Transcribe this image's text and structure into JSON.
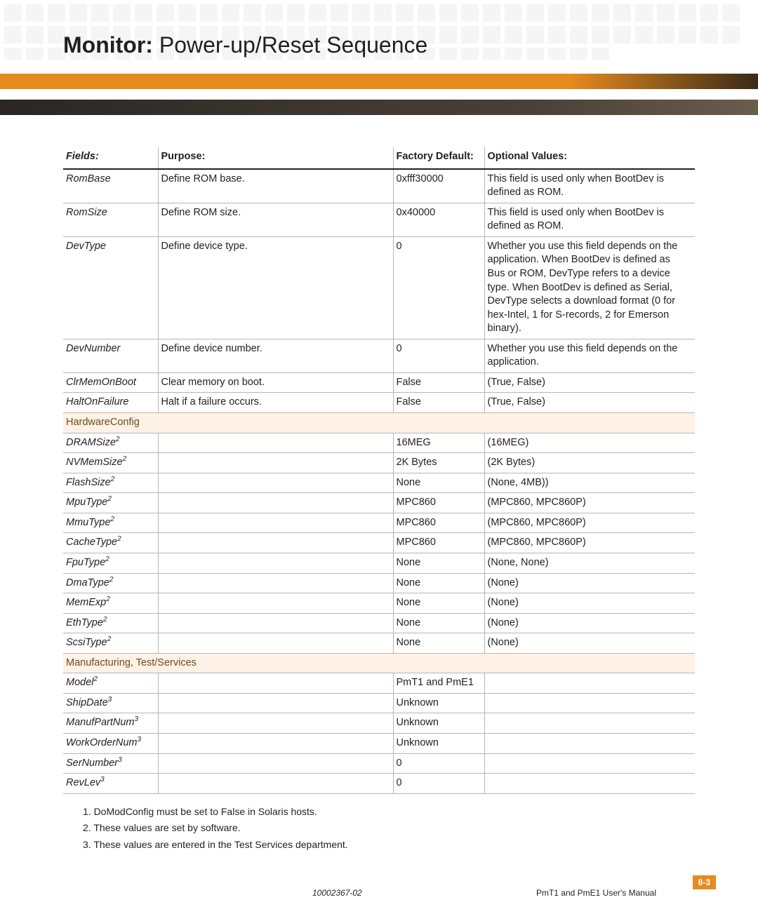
{
  "header": {
    "title_bold": "Monitor:",
    "title_rest": "  Power-up/Reset Sequence"
  },
  "colors": {
    "orange": "#e78b1f",
    "section_bg": "#fdf2e5",
    "text": "#231f20",
    "rule": "#b8b6b4"
  },
  "table": {
    "headers": {
      "fields": "Fields:",
      "purpose": "Purpose:",
      "default": "Factory Default:",
      "optional": "Optional Values:"
    },
    "rows": [
      {
        "type": "data",
        "field": "RomBase",
        "sup": "",
        "purpose": "Define ROM base.",
        "default": "0xfff30000",
        "optional": "This field is used only when BootDev is defined as ROM."
      },
      {
        "type": "data",
        "field": "RomSize",
        "sup": "",
        "purpose": "Define ROM size.",
        "default": "0x40000",
        "optional": "This field is used only when BootDev is defined as ROM."
      },
      {
        "type": "data",
        "field": "DevType",
        "sup": "",
        "purpose": "Define device type.",
        "default": "0",
        "optional": "Whether you use this field depends on the application. When BootDev is defined as Bus or ROM, DevType refers to a device type. When BootDev is defined as Serial, DevType selects a download format (0 for hex-Intel, 1 for S-records, 2 for Emerson binary)."
      },
      {
        "type": "data",
        "field": "DevNumber",
        "sup": "",
        "purpose": "Define device number.",
        "default": "0",
        "optional": "Whether you use this field depends on the application."
      },
      {
        "type": "data",
        "field": "ClrMemOnBoot",
        "sup": "",
        "purpose": "Clear memory on boot.",
        "default": "False",
        "optional": "(True, False)"
      },
      {
        "type": "data",
        "field": "HaltOnFailure",
        "sup": "",
        "purpose": "Halt if a failure occurs.",
        "default": "False",
        "optional": "(True, False)"
      },
      {
        "type": "section",
        "label": "HardwareConfig"
      },
      {
        "type": "data",
        "field": "DRAMSize",
        "sup": "2",
        "purpose": "",
        "default": "16MEG",
        "optional": "(16MEG)"
      },
      {
        "type": "data",
        "field": "NVMemSize",
        "sup": "2",
        "purpose": "",
        "default": "2K Bytes",
        "optional": "(2K Bytes)"
      },
      {
        "type": "data",
        "field": "FlashSize",
        "sup": "2",
        "purpose": "",
        "default": "None",
        "optional": "(None, 4MB))"
      },
      {
        "type": "data",
        "field": "MpuType",
        "sup": "2",
        "purpose": "",
        "default": "MPC860",
        "optional": "(MPC860, MPC860P)"
      },
      {
        "type": "data",
        "field": "MmuType",
        "sup": "2",
        "purpose": "",
        "default": "MPC860",
        "optional": "(MPC860, MPC860P)"
      },
      {
        "type": "data",
        "field": "CacheType",
        "sup": "2",
        "purpose": "",
        "default": "MPC860",
        "optional": "(MPC860, MPC860P)"
      },
      {
        "type": "data",
        "field": "FpuType",
        "sup": "2",
        "purpose": "",
        "default": "None",
        "optional": "(None, None)"
      },
      {
        "type": "data",
        "field": "DmaType",
        "sup": "2",
        "purpose": "",
        "default": "None",
        "optional": "(None)"
      },
      {
        "type": "data",
        "field": "MemExp",
        "sup": "2",
        "purpose": "",
        "default": "None",
        "optional": "(None)"
      },
      {
        "type": "data",
        "field": "EthType",
        "sup": "2",
        "purpose": "",
        "default": "None",
        "optional": "(None)"
      },
      {
        "type": "data",
        "field": "ScsiType",
        "sup": "2",
        "purpose": "",
        "default": "None",
        "optional": "(None)"
      },
      {
        "type": "section",
        "label": "Manufacturing, Test/Services"
      },
      {
        "type": "data",
        "field": "Model",
        "sup": "2",
        "purpose": "",
        "default": "PmT1 and PmE1",
        "optional": ""
      },
      {
        "type": "data",
        "field": "ShipDate",
        "sup": "3",
        "purpose": "",
        "default": "Unknown",
        "optional": ""
      },
      {
        "type": "data",
        "field": "ManufPartNum",
        "sup": "3",
        "purpose": "",
        "default": "Unknown",
        "optional": ""
      },
      {
        "type": "data",
        "field": "WorkOrderNum",
        "sup": "3",
        "purpose": "",
        "default": "Unknown",
        "optional": ""
      },
      {
        "type": "data",
        "field": "SerNumber",
        "sup": "3",
        "purpose": "",
        "default": "0",
        "optional": ""
      },
      {
        "type": "data",
        "field": "RevLev",
        "sup": "3",
        "purpose": "",
        "default": "0",
        "optional": ""
      }
    ]
  },
  "footnotes": [
    "1.  DoModConfig must be set to False in Solaris hosts.",
    "2.  These values are set by software.",
    "3.  These values are entered in the Test Services department."
  ],
  "footer": {
    "doc_id": "10002367-02",
    "manual": "PmT1 and PmE1 User's Manual",
    "page": "8-3"
  }
}
